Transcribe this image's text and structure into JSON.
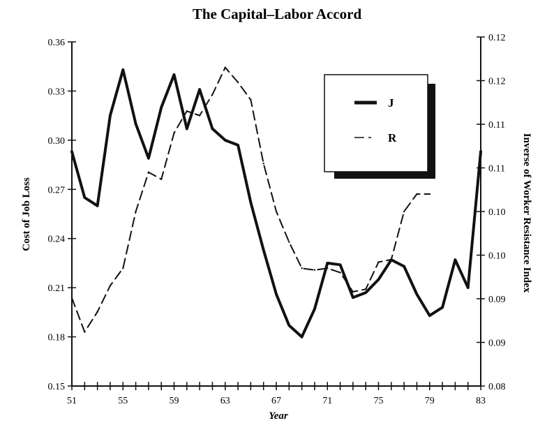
{
  "chart_data": {
    "type": "line",
    "title": "The Capital–Labor Accord",
    "xlabel": "Year",
    "ylabel_left": "Cost of Job Loss",
    "ylabel_right": "Inverse of Worker Resistance Index",
    "x_tick_labels": [
      "51",
      "55",
      "59",
      "63",
      "67",
      "71",
      "75",
      "79",
      "83"
    ],
    "y_left_ticks": [
      "0.15",
      "0.18",
      "0.21",
      "0.24",
      "0.27",
      "0.30",
      "0.33",
      "0.36"
    ],
    "y_right_ticks": [
      "0.08",
      "0.09",
      "0.09",
      "0.10",
      "0.10",
      "0.11",
      "0.11",
      "0.12",
      "0.12"
    ],
    "y_left_range": [
      0.15,
      0.36
    ],
    "y_right_range": [
      0.08,
      0.12
    ],
    "x_range": [
      51,
      83
    ],
    "grid": false,
    "legend_position": "top-right",
    "series": [
      {
        "name": "J",
        "axis": "left",
        "style": "solid",
        "color": "#111111",
        "x": [
          51,
          52,
          53,
          54,
          55,
          56,
          57,
          58,
          59,
          60,
          61,
          62,
          63,
          64,
          65,
          66,
          67,
          68,
          69,
          70,
          71,
          72,
          73,
          74,
          75,
          76,
          77,
          78,
          79,
          80,
          81,
          82,
          83
        ],
        "y": [
          0.293,
          0.265,
          0.26,
          0.315,
          0.343,
          0.31,
          0.289,
          0.32,
          0.34,
          0.307,
          0.331,
          0.307,
          0.3,
          0.297,
          0.262,
          0.233,
          0.206,
          0.187,
          0.18,
          0.197,
          0.225,
          0.224,
          0.204,
          0.207,
          0.215,
          0.227,
          0.223,
          0.206,
          0.193,
          0.198,
          0.227,
          0.21,
          0.293
        ]
      },
      {
        "name": "R",
        "axis": "right",
        "style": "dashed",
        "color": "#111111",
        "x": [
          51,
          52,
          53,
          54,
          55,
          56,
          57,
          58,
          59,
          60,
          61,
          62,
          63,
          64,
          65,
          66,
          67,
          68,
          69,
          70,
          71,
          72,
          73,
          74,
          75,
          76,
          77,
          78,
          79
        ],
        "y": [
          0.0901,
          0.0862,
          0.0885,
          0.0915,
          0.0935,
          0.1,
          0.1045,
          0.1037,
          0.109,
          0.1115,
          0.111,
          0.1134,
          0.1165,
          0.1148,
          0.1128,
          0.1055,
          0.1,
          0.0965,
          0.0935,
          0.0933,
          0.0935,
          0.093,
          0.0908,
          0.0911,
          0.0942,
          0.0945,
          0.1,
          0.102,
          0.102
        ]
      }
    ]
  }
}
